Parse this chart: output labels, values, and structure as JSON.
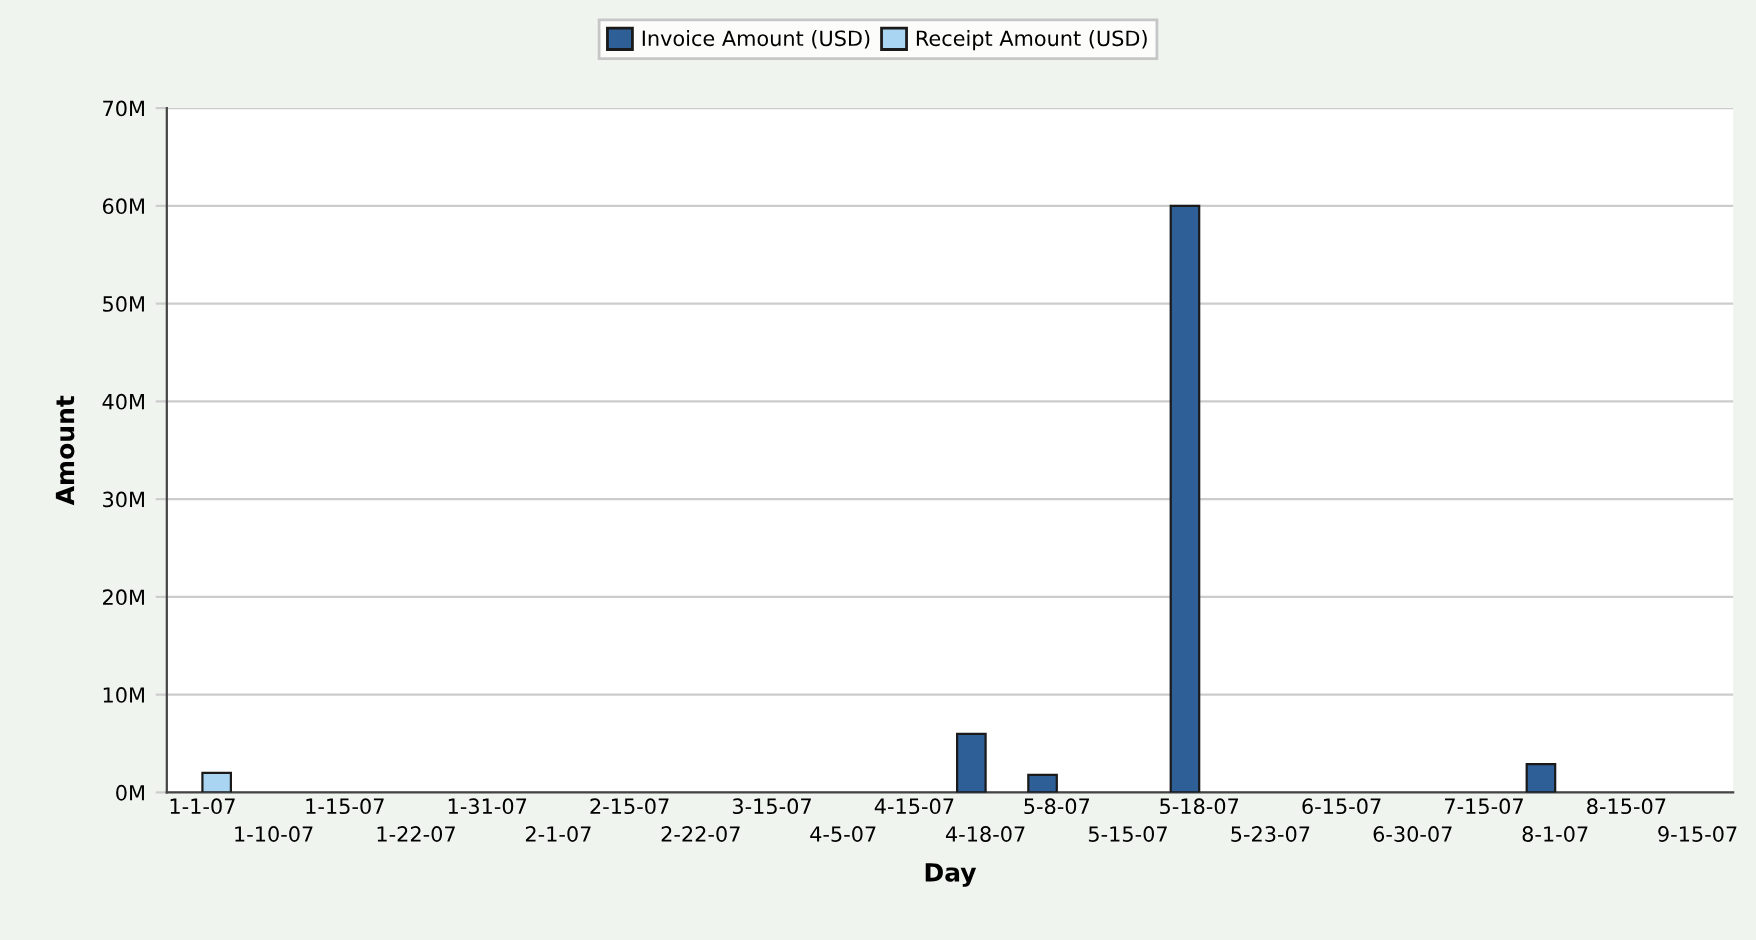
{
  "chart_data": {
    "type": "bar",
    "xlabel": "Day",
    "ylabel": "Amount",
    "categories": [
      "1-1-07",
      "1-10-07",
      "1-15-07",
      "1-22-07",
      "1-31-07",
      "2-1-07",
      "2-15-07",
      "2-22-07",
      "3-15-07",
      "4-5-07",
      "4-15-07",
      "4-18-07",
      "5-8-07",
      "5-15-07",
      "5-18-07",
      "5-23-07",
      "6-15-07",
      "6-30-07",
      "7-15-07",
      "8-1-07",
      "8-15-07",
      "9-15-07"
    ],
    "series": [
      {
        "name": "Invoice Amount (USD)",
        "color": "#2e5f97",
        "values": [
          null,
          null,
          null,
          null,
          null,
          null,
          null,
          null,
          null,
          null,
          null,
          6,
          1.8,
          null,
          60,
          null,
          null,
          null,
          null,
          2.9,
          null,
          null
        ]
      },
      {
        "name": "Receipt Amount (USD)",
        "color": "#a9d5f2",
        "values": [
          2,
          null,
          null,
          null,
          null,
          null,
          null,
          null,
          null,
          null,
          null,
          null,
          null,
          null,
          null,
          null,
          null,
          null,
          null,
          null,
          null,
          null
        ]
      }
    ],
    "ylim": [
      0,
      70
    ],
    "yticks": [
      {
        "value": 0,
        "label": "0M"
      },
      {
        "value": 10,
        "label": "10M"
      },
      {
        "value": 20,
        "label": "20M"
      },
      {
        "value": 30,
        "label": "30M"
      },
      {
        "value": 40,
        "label": "40M"
      },
      {
        "value": 50,
        "label": "50M"
      },
      {
        "value": 60,
        "label": "60M"
      },
      {
        "value": 70,
        "label": "70M"
      }
    ],
    "grid": "y",
    "legend": "top"
  }
}
